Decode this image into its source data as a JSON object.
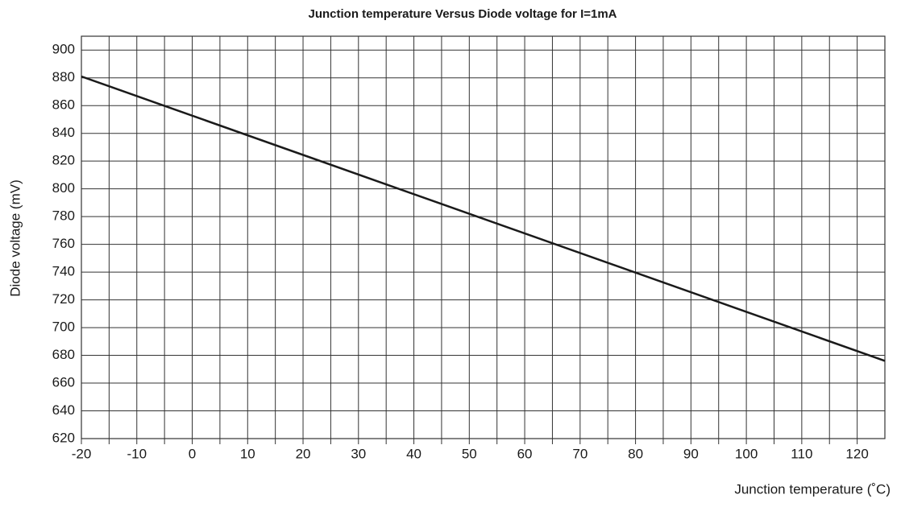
{
  "chart_data": {
    "type": "line",
    "title": "Junction temperature Versus Diode voltage for I=1mA",
    "x_label": "Junction temperature (˚C)",
    "y_label": "Diode voltage (mV)",
    "series": [
      {
        "name": "I=1mA",
        "color": "#1a1a1a",
        "x": [
          -20,
          125
        ],
        "values": [
          881,
          676
        ]
      }
    ],
    "xlim": [
      -20,
      125
    ],
    "xticks": [
      -20,
      -10,
      0,
      10,
      20,
      30,
      40,
      50,
      60,
      70,
      80,
      90,
      100,
      110,
      120
    ],
    "xminor": [
      -15,
      -5,
      5,
      15,
      25,
      35,
      45,
      55,
      65,
      75,
      85,
      95,
      105,
      115
    ],
    "ylim": [
      620,
      910
    ],
    "yticks": [
      620,
      640,
      660,
      680,
      700,
      720,
      740,
      760,
      780,
      800,
      820,
      840,
      860,
      880,
      900
    ],
    "grid": true
  }
}
